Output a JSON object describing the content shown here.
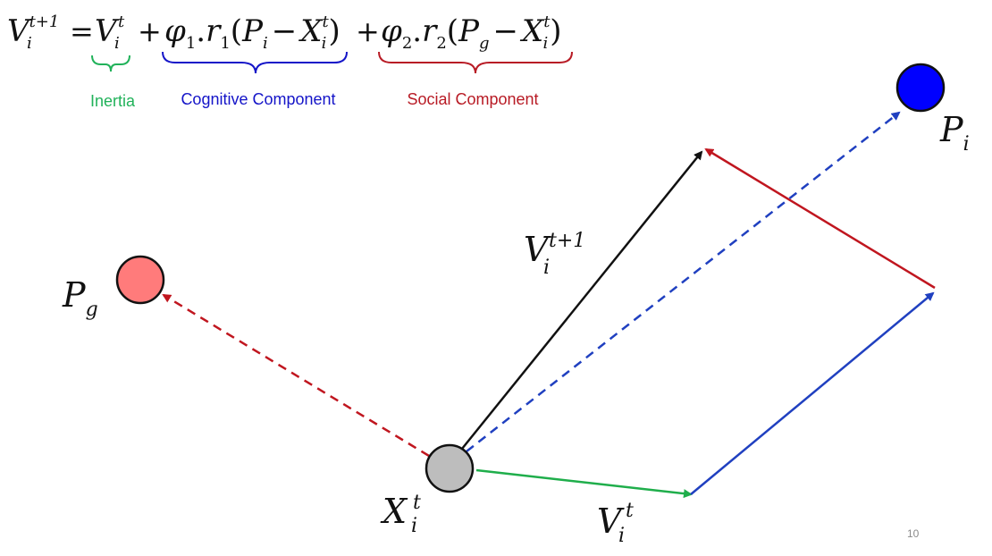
{
  "equation": {
    "lhs": {
      "base": "V",
      "sub": "i",
      "sup": "t+1"
    },
    "equals": "=",
    "inertia_term": {
      "base": "V",
      "sub": "i",
      "sup": "t"
    },
    "plus1": "+",
    "cognitive_term": {
      "coef": "φ",
      "coef_sub": "1",
      "dot": ".",
      "r": "r",
      "r_sub": "1",
      "open": "(",
      "p": "P",
      "p_sub": "i",
      "minus": "−",
      "x": "X",
      "x_sub": "i",
      "x_sup": "t",
      "close": ")"
    },
    "plus2": "+",
    "social_term": {
      "coef": "φ",
      "coef_sub": "2",
      "dot": ".",
      "r": "r",
      "r_sub": "2",
      "open": "(",
      "p": "P",
      "p_sub": "g",
      "minus": "−",
      "x": "X",
      "x_sub": "i",
      "x_sup": "t",
      "close": ")"
    }
  },
  "captions": {
    "inertia": "Inertia",
    "cognitive": "Cognitive Component",
    "social": "Social Component"
  },
  "nodes": {
    "personal_best": {
      "base": "P",
      "sub": "i",
      "color": "#0000ff"
    },
    "global_best": {
      "base": "P",
      "sub": "g",
      "color": "#ff7b7b"
    },
    "particle": {
      "base": "X",
      "sub": "i",
      "sup": "t",
      "color": "#bdbdbd"
    }
  },
  "vectors": {
    "new_velocity": {
      "base": "V",
      "sub": "i",
      "sup": "t+1",
      "color": "#111111"
    },
    "inertia": {
      "base": "V",
      "sub": "i",
      "sup": "t",
      "color": "#1fae4b"
    },
    "cognitive": {
      "color": "#2040c0"
    },
    "social": {
      "color": "#c0161f"
    }
  },
  "colors": {
    "inertia": "#21b25a",
    "cognitive": "#1414c8",
    "social": "#b81b25"
  },
  "slide_number": "10"
}
